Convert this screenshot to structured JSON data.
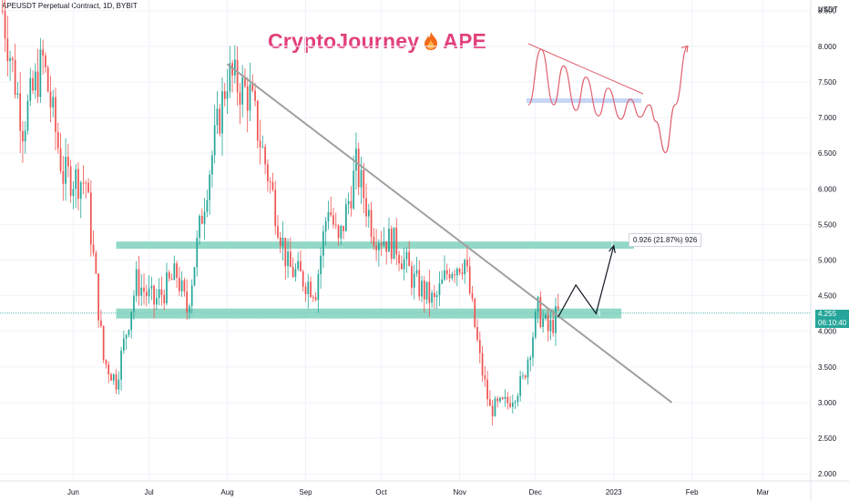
{
  "header": {
    "symbol_line": "APEUSDT Perpetual Contract, 1D, BYBIT",
    "brand_text": "CryptoJourney",
    "brand_suffix": "APE",
    "brand_icon": "flame-icon"
  },
  "colors": {
    "up": "#26a69a",
    "down": "#ef5350",
    "zone": "#7fd1bd",
    "trendline": "#a0a0a0",
    "brand": "#e2407a",
    "inset_line": "#e0606e",
    "inset_zone": "#c7d6f5"
  },
  "chart_data": {
    "type": "candlestick",
    "y_axis_unit": "USDT",
    "y_ticks": [
      "8.500",
      "8.000",
      "7.500",
      "7.000",
      "6.500",
      "6.000",
      "5.500",
      "5.000",
      "4.500",
      "4.000",
      "3.500",
      "3.000",
      "2.500",
      "2.000"
    ],
    "y_tick_values": [
      8.5,
      8.0,
      7.5,
      7.0,
      6.5,
      6.0,
      5.5,
      5.0,
      4.5,
      4.0,
      3.5,
      3.0,
      2.5,
      2.0
    ],
    "ylim": [
      1.9,
      8.65
    ],
    "x_ticks": [
      "Jun",
      "Jul",
      "Aug",
      "Sep",
      "Oct",
      "Nov",
      "Dec",
      "2023",
      "Feb",
      "Mar"
    ],
    "x_tick_dates": [
      "2022-06-01",
      "2022-07-01",
      "2022-08-01",
      "2022-09-01",
      "2022-10-01",
      "2022-11-01",
      "2022-12-01",
      "2023-01-01",
      "2023-02-01",
      "2023-03-01"
    ],
    "x_range": [
      "2022-05-03",
      "2023-03-20"
    ],
    "last_candle_date": "2022-12-10",
    "anchors": [
      {
        "date": "2022-05-04",
        "close": 8.5
      },
      {
        "date": "2022-05-12",
        "close": 6.9
      },
      {
        "date": "2022-05-20",
        "close": 7.8
      },
      {
        "date": "2022-05-28",
        "close": 6.2
      },
      {
        "date": "2022-06-06",
        "close": 6.1
      },
      {
        "date": "2022-06-13",
        "close": 3.6
      },
      {
        "date": "2022-06-18",
        "close": 3.3
      },
      {
        "date": "2022-06-26",
        "close": 4.7
      },
      {
        "date": "2022-07-03",
        "close": 4.4
      },
      {
        "date": "2022-07-12",
        "close": 4.8
      },
      {
        "date": "2022-07-16",
        "close": 4.3
      },
      {
        "date": "2022-07-24",
        "close": 6.1
      },
      {
        "date": "2022-08-01",
        "close": 7.6
      },
      {
        "date": "2022-08-10",
        "close": 7.3
      },
      {
        "date": "2022-08-19",
        "close": 5.9
      },
      {
        "date": "2022-08-25",
        "close": 4.9
      },
      {
        "date": "2022-09-05",
        "close": 4.6
      },
      {
        "date": "2022-09-10",
        "close": 5.8
      },
      {
        "date": "2022-09-14",
        "close": 5.2
      },
      {
        "date": "2022-09-21",
        "close": 6.3
      },
      {
        "date": "2022-09-28",
        "close": 5.4
      },
      {
        "date": "2022-10-07",
        "close": 5.2
      },
      {
        "date": "2022-10-14",
        "close": 4.7
      },
      {
        "date": "2022-10-22",
        "close": 4.4
      },
      {
        "date": "2022-10-28",
        "close": 4.9
      },
      {
        "date": "2022-11-03",
        "close": 5.0
      },
      {
        "date": "2022-11-09",
        "close": 3.6
      },
      {
        "date": "2022-11-13",
        "close": 2.9
      },
      {
        "date": "2022-11-20",
        "close": 3.0
      },
      {
        "date": "2022-11-26",
        "close": 3.3
      },
      {
        "date": "2022-12-02",
        "close": 4.3
      },
      {
        "date": "2022-12-06",
        "close": 4.0
      },
      {
        "date": "2022-12-10",
        "close": 4.25
      }
    ],
    "current_price": "4.255",
    "current_price_value": 4.255,
    "countdown": "06:10:40",
    "zones": [
      {
        "name": "resistance-zone",
        "from_date": "2022-06-18",
        "to_date": "2023-01-09",
        "low": 5.16,
        "high": 5.26
      },
      {
        "name": "support-zone",
        "from_date": "2022-06-18",
        "to_date": "2023-01-04",
        "low": 4.18,
        "high": 4.32
      }
    ],
    "trendline": {
      "start": {
        "date": "2022-08-01",
        "price": 7.75
      },
      "end": {
        "date": "2023-01-24",
        "price": 3.0
      }
    },
    "projection_path": [
      {
        "date": "2022-12-10",
        "price": 4.2
      },
      {
        "date": "2022-12-17",
        "price": 4.65
      },
      {
        "date": "2022-12-25",
        "price": 4.25
      },
      {
        "date": "2023-01-01",
        "price": 5.2
      }
    ],
    "measure": {
      "label": "0.926 (21.87%) 926",
      "change": 0.926,
      "percent": 21.87,
      "ticks": 926
    }
  },
  "inset": {
    "description_icon": "pattern-sketch-icon",
    "wave": [
      [
        0,
        0.55
      ],
      [
        0.08,
        0.05
      ],
      [
        0.16,
        0.55
      ],
      [
        0.22,
        0.2
      ],
      [
        0.3,
        0.6
      ],
      [
        0.36,
        0.3
      ],
      [
        0.44,
        0.65
      ],
      [
        0.5,
        0.4
      ],
      [
        0.58,
        0.68
      ],
      [
        0.64,
        0.5
      ],
      [
        0.7,
        0.66
      ],
      [
        0.76,
        0.55
      ],
      [
        0.8,
        0.7
      ],
      [
        0.86,
        0.98
      ],
      [
        0.92,
        0.55
      ],
      [
        1.0,
        0.02
      ]
    ]
  }
}
